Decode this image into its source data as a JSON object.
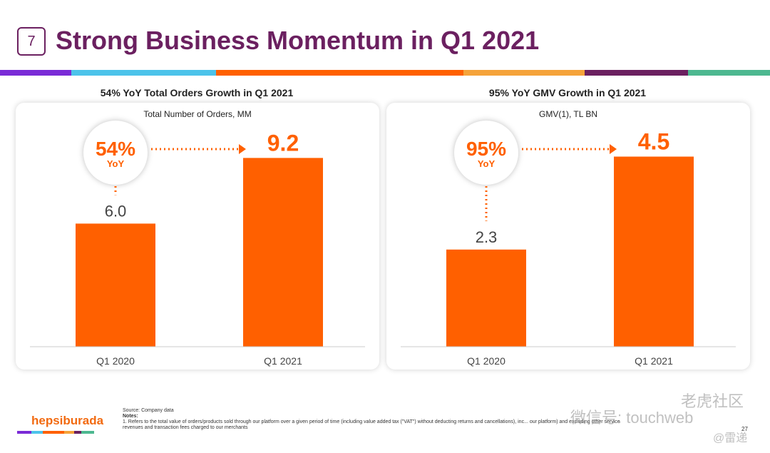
{
  "header": {
    "number": "7",
    "title": "Strong Business Momentum in Q1 2021"
  },
  "colors": {
    "bar": "#ff6000",
    "title": "#6b2060",
    "stripes": [
      "#7a2bd6",
      "#4cc3ea",
      "#ff6000",
      "#f5a33a",
      "#6b2060",
      "#4db890"
    ]
  },
  "chart_data": [
    {
      "type": "bar",
      "title": "54% YoY Total Orders Growth in Q1 2021",
      "subtitle": "Total Number of Orders, MM",
      "categories": [
        "Q1 2020",
        "Q1 2021"
      ],
      "values": [
        6.0,
        9.2
      ],
      "labels": [
        "6.0",
        "9.2"
      ],
      "growth": "54%",
      "growth_label": "YoY",
      "ylim": [
        0,
        10.5
      ]
    },
    {
      "type": "bar",
      "title": "95% YoY GMV Growth in Q1 2021",
      "subtitle": "GMV(1), TL BN",
      "categories": [
        "Q1 2020",
        "Q1 2021"
      ],
      "values": [
        2.3,
        4.5
      ],
      "labels": [
        "2.3",
        "4.5"
      ],
      "growth": "95%",
      "growth_label": "YoY",
      "ylim": [
        0,
        5.1
      ]
    }
  ],
  "footer": {
    "source": "Source: Company data",
    "notes": "Notes:",
    "note1": "1.  Refers to the total value of orders/products sold through our platform over a given period of time (including value added tax (\"VAT\") without deducting returns and cancellations), inc... our platform) and excluding other service revenues and transaction fees charged to our merchants",
    "logo": "hepsiburada",
    "page": "27",
    "watermark1": "微信号: touchweb",
    "watermark2": "老虎社区",
    "watermark3": "@雷递"
  }
}
